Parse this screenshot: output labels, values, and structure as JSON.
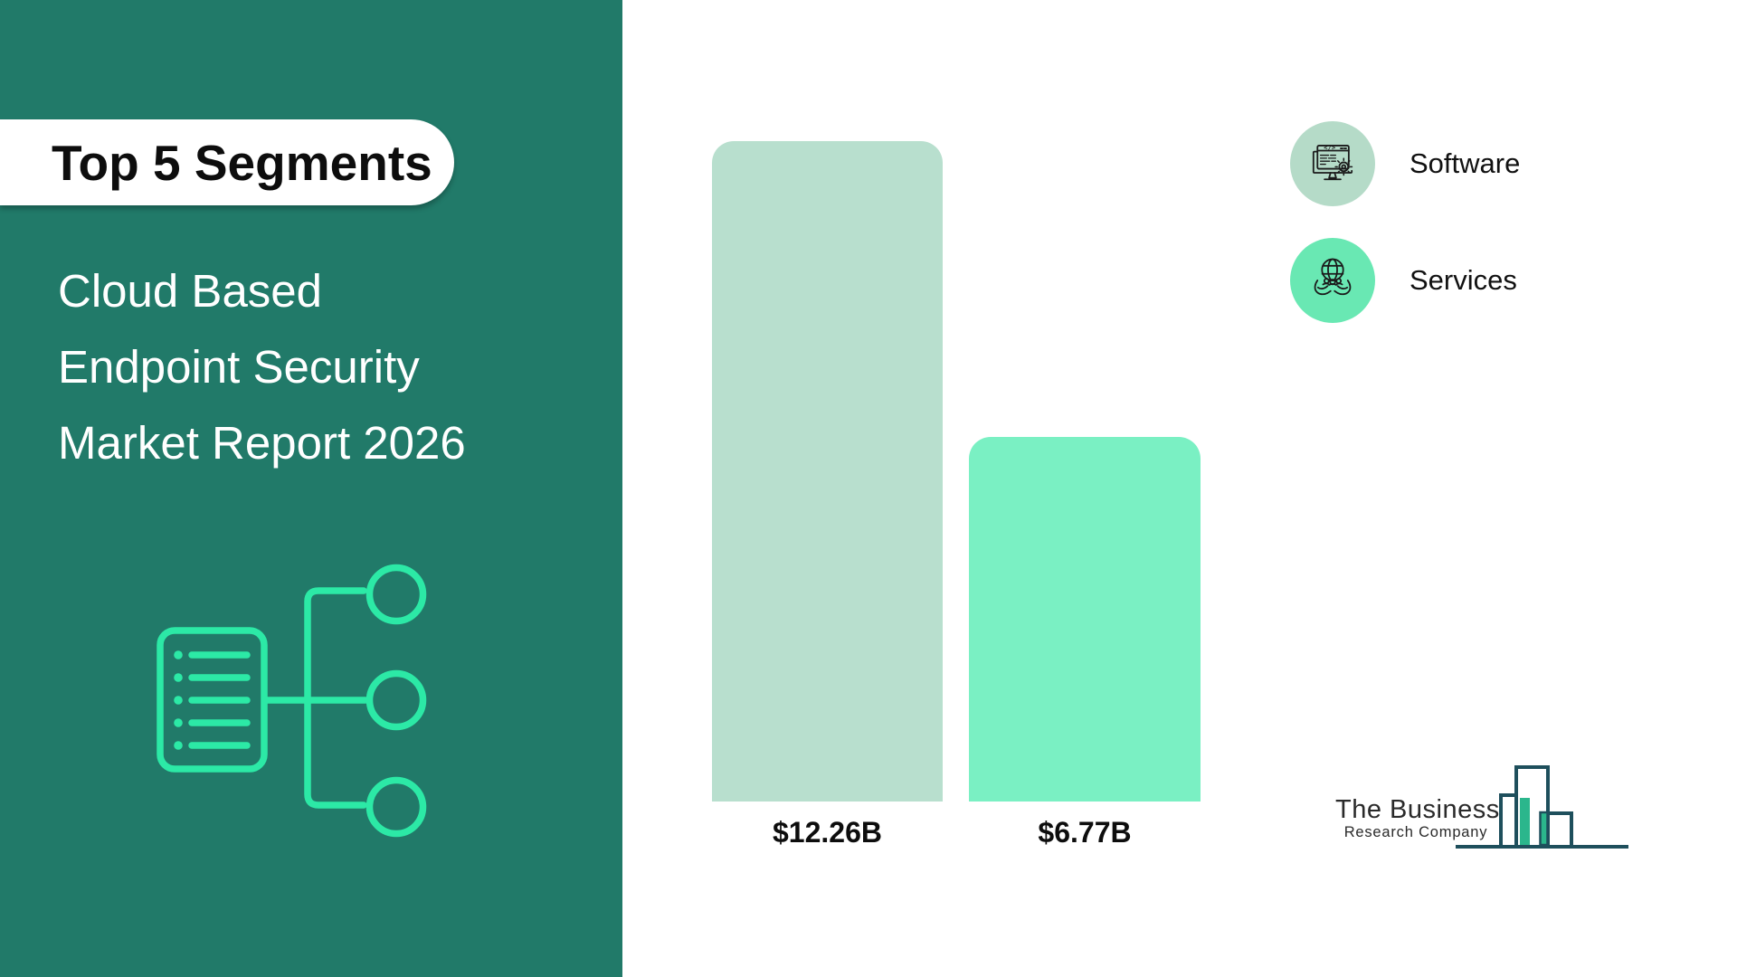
{
  "sidebar": {
    "badge": "Top 5 Segments",
    "title_lines": [
      "Cloud Based",
      "Endpoint Security",
      "Market Report 2026"
    ]
  },
  "chart_data": {
    "type": "bar",
    "title": "Cloud Based Endpoint Security Market Report 2026",
    "categories": [
      "Software",
      "Services"
    ],
    "values": [
      12.26,
      6.77
    ],
    "value_labels": [
      "$12.26B",
      "$6.77B"
    ],
    "colors": [
      "#b8dfce",
      "#7af0c3"
    ],
    "ylim": [
      0,
      12.26
    ],
    "grid": false,
    "legend_position": "top-right"
  },
  "legend": {
    "items": [
      {
        "label": "Software",
        "icon": "software-monitor-code-icon",
        "color": "#b5dbc8"
      },
      {
        "label": "Services",
        "icon": "hands-globe-icon",
        "color": "#69e8b3"
      }
    ]
  },
  "logo": {
    "line1": "The Business",
    "line2": "Research Company"
  },
  "theme": {
    "sidebar_bg": "#217a69",
    "accent_mint": "#2ce9a6",
    "logo_navy": "#1e4f5c",
    "logo_green": "#2bb68c",
    "text_dark": "#0d0d0d",
    "banner_bg": "#ffffff"
  }
}
